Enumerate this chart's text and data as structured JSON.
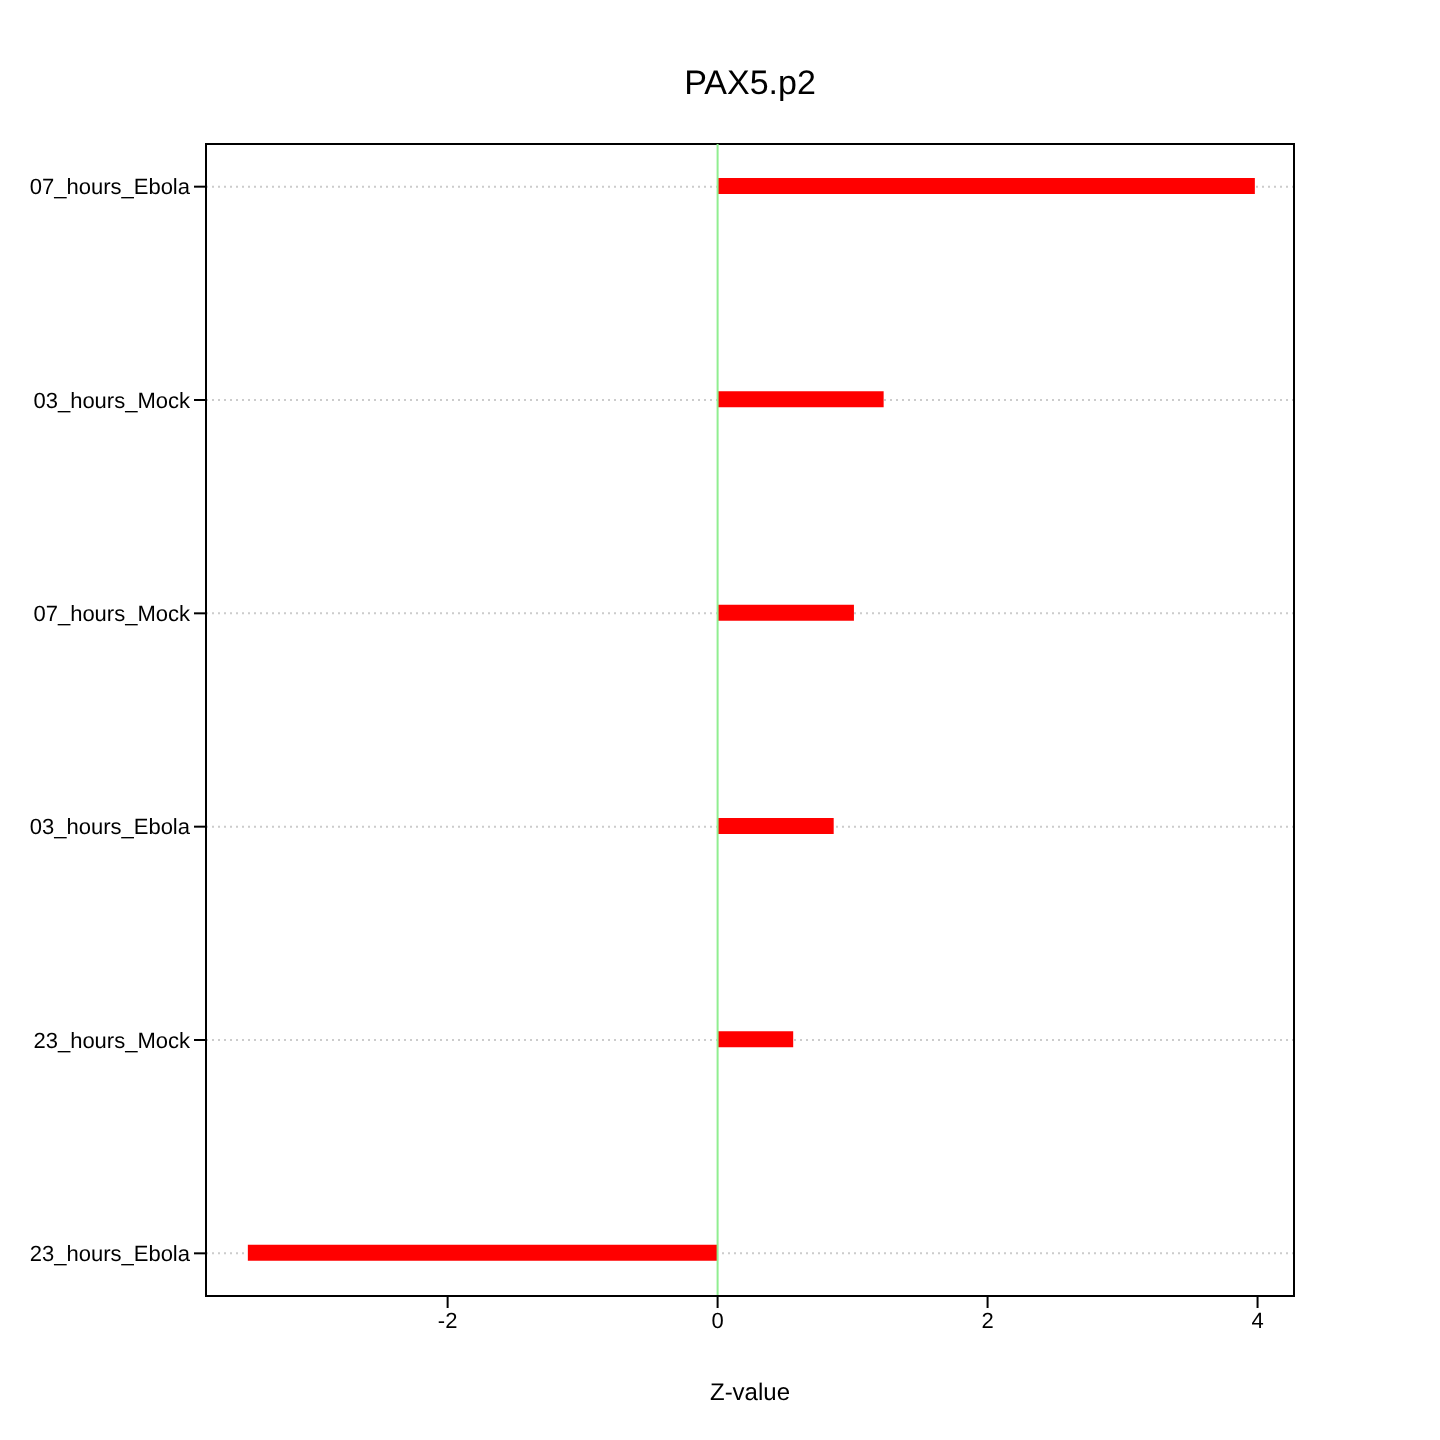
{
  "chart_data": {
    "type": "bar",
    "orientation": "horizontal",
    "title": "PAX5.p2",
    "xlabel": "Z-value",
    "categories": [
      "07_hours_Ebola",
      "03_hours_Mock",
      "07_hours_Mock",
      "03_hours_Ebola",
      "23_hours_Mock",
      "23_hours_Ebola"
    ],
    "values": [
      3.98,
      1.23,
      1.01,
      0.86,
      0.56,
      -3.48
    ],
    "color": "#ff0000",
    "xlim": [
      -3.79,
      4.27
    ],
    "xticks": [
      -2,
      0,
      2,
      4
    ],
    "grid": "y",
    "ref_lines": [
      {
        "axis": "x",
        "value": 0,
        "color": "#90ee90"
      }
    ]
  }
}
